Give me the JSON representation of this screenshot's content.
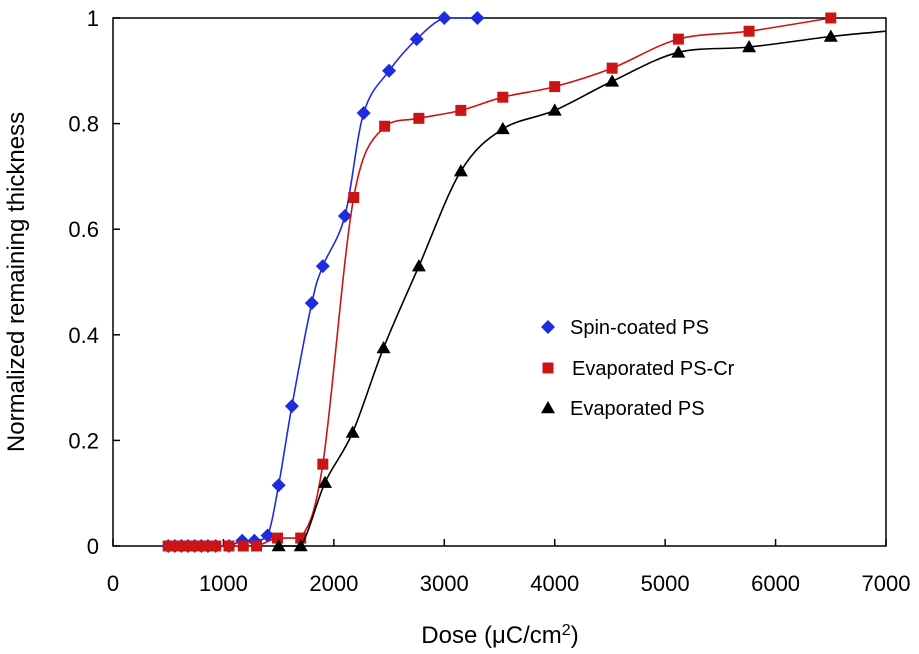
{
  "chart_data": {
    "type": "line",
    "title": "",
    "xlabel": "Dose (μC/cm²)",
    "xlabel_parts": [
      "Dose (",
      "μC/cm",
      "2",
      ")"
    ],
    "ylabel": "Normalized remaining thickness",
    "xlim": [
      0,
      7000
    ],
    "ylim": [
      0,
      1
    ],
    "xticks": [
      "0",
      "1000",
      "2000",
      "3000",
      "4000",
      "5000",
      "6000",
      "7000"
    ],
    "yticks": [
      "0",
      "0.2",
      "0.4",
      "0.6",
      "0.8",
      "1"
    ],
    "grid": false,
    "legend_position": "center-right",
    "series": [
      {
        "name": "Spin-coated PS",
        "color": "#1f2be0",
        "marker": "diamond",
        "x": [
          500,
          560,
          620,
          680,
          740,
          800,
          860,
          930,
          1050,
          1170,
          1280,
          1400,
          1500,
          1620,
          1800,
          1900,
          2100,
          2270,
          2500,
          2750,
          3000,
          3300
        ],
        "y": [
          0,
          0,
          0,
          0,
          0,
          0,
          0,
          0,
          0,
          0.01,
          0.01,
          0.02,
          0.115,
          0.265,
          0.46,
          0.53,
          0.625,
          0.82,
          0.9,
          0.96,
          1.0,
          1.0
        ]
      },
      {
        "name": "Evaporated PS-Cr",
        "color": "#cc1414",
        "marker": "square",
        "x": [
          500,
          560,
          620,
          680,
          740,
          800,
          860,
          930,
          1050,
          1180,
          1300,
          1490,
          1700,
          1900,
          2180,
          2460,
          2770,
          3150,
          3530,
          4000,
          4520,
          5120,
          5760,
          6500
        ],
        "y": [
          0,
          0,
          0,
          0,
          0,
          0,
          0,
          0,
          0,
          0,
          0,
          0.015,
          0.015,
          0.155,
          0.66,
          0.795,
          0.81,
          0.825,
          0.85,
          0.87,
          0.905,
          0.96,
          0.975,
          1.0
        ]
      },
      {
        "name": "Evaporated PS",
        "color": "#000000",
        "marker": "triangle",
        "x": [
          1500,
          1700,
          1920,
          2170,
          2450,
          2770,
          3150,
          3530,
          4000,
          4520,
          5120,
          5760,
          6500,
          7000
        ],
        "y": [
          0,
          0,
          0.12,
          0.215,
          0.375,
          0.53,
          0.71,
          0.79,
          0.825,
          0.88,
          0.935,
          0.945,
          0.965,
          0.975
        ]
      }
    ]
  }
}
